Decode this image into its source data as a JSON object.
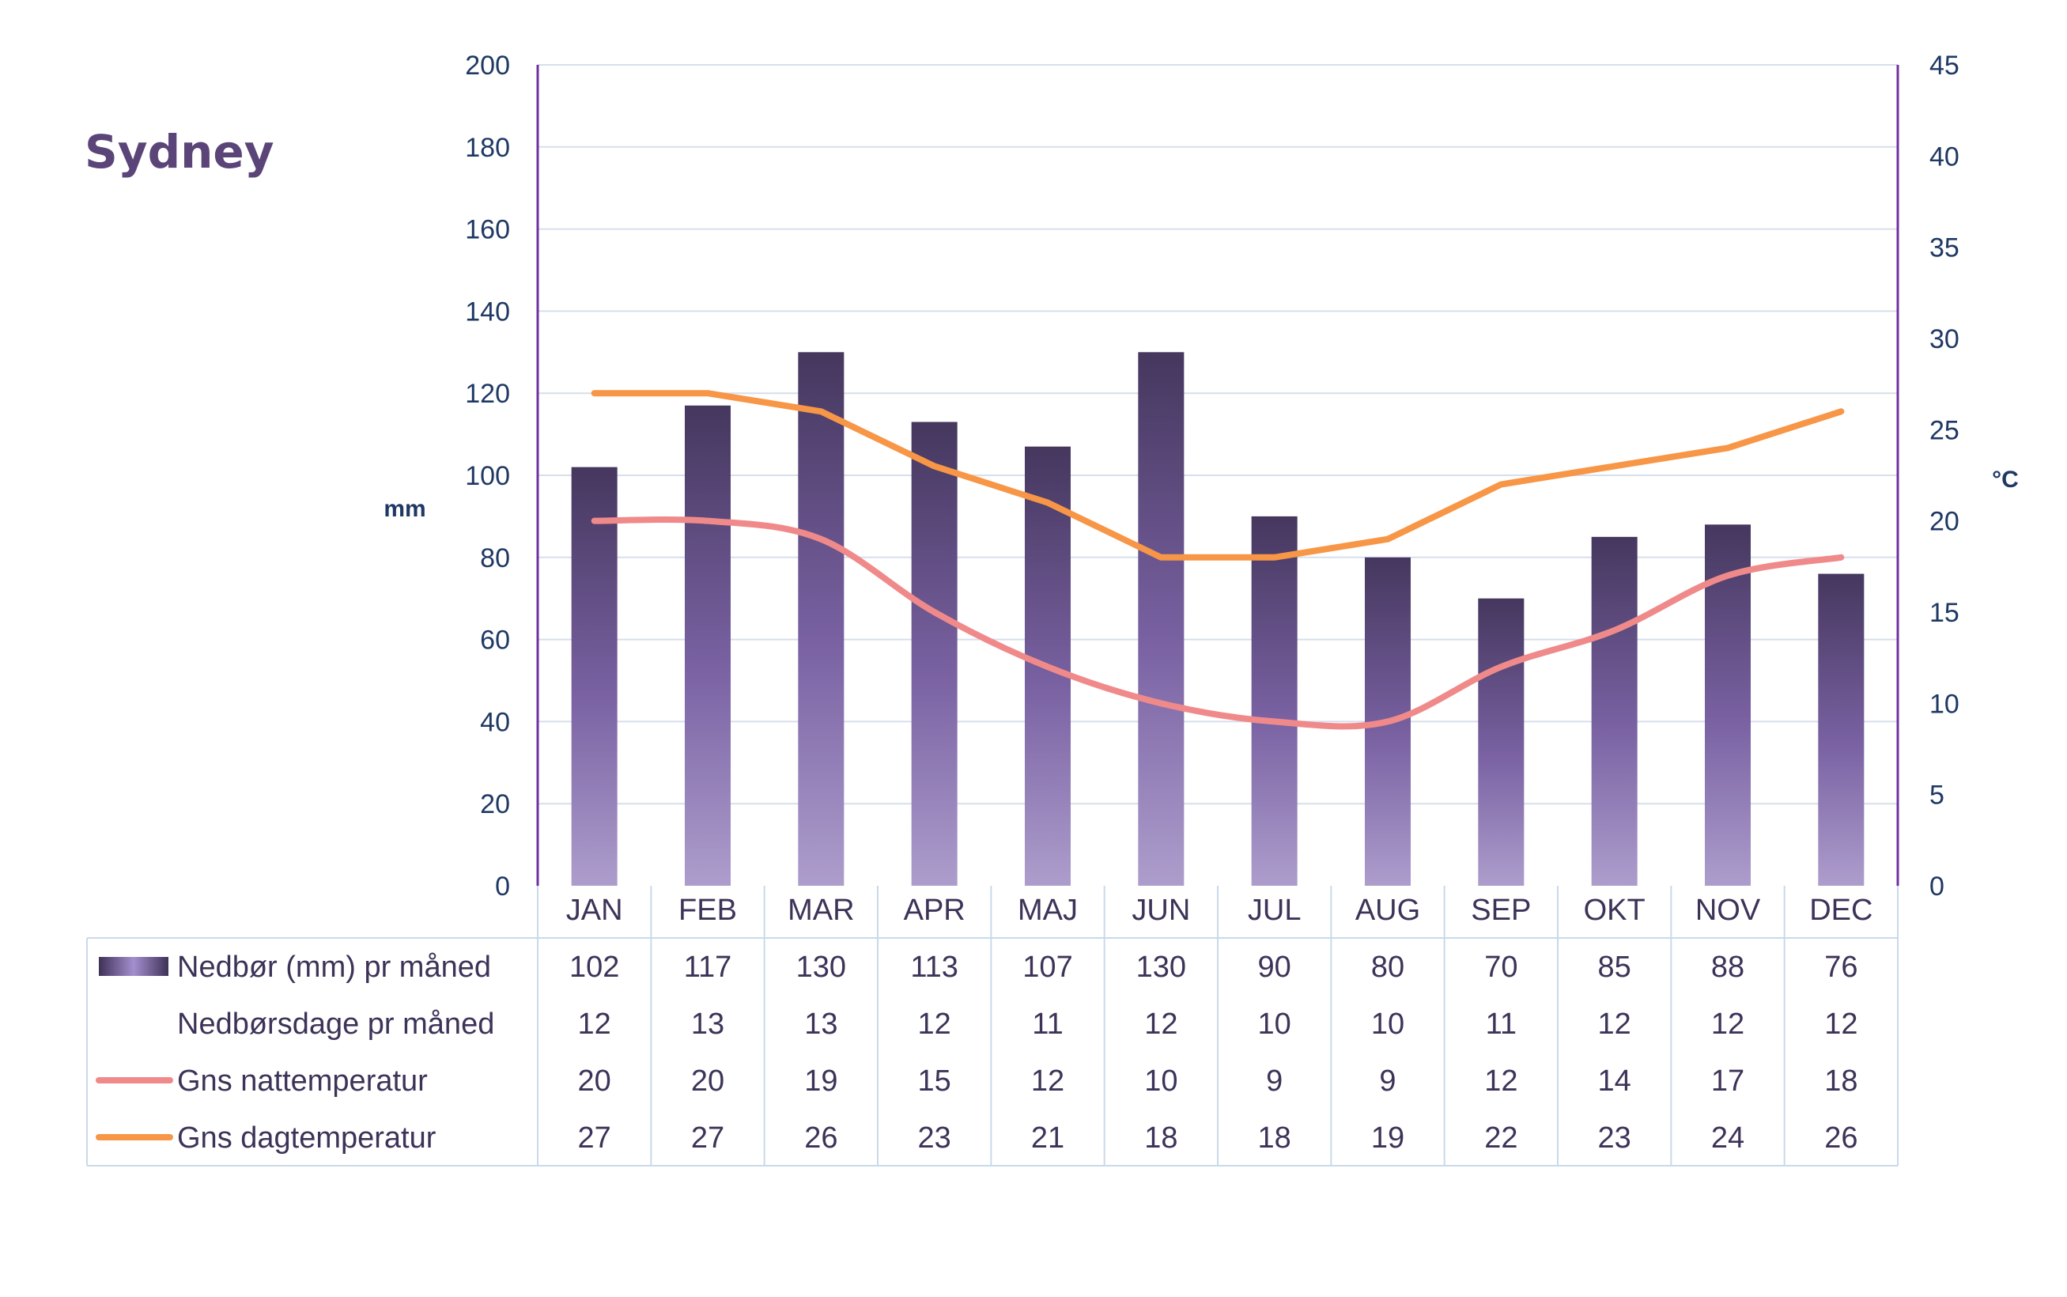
{
  "title": "Sydney",
  "chart_data": {
    "type": "bar",
    "title": "Sydney",
    "categories": [
      "JAN",
      "FEB",
      "MAR",
      "APR",
      "MAJ",
      "JUN",
      "JUL",
      "AUG",
      "SEP",
      "OKT",
      "NOV",
      "DEC"
    ],
    "ylabel_left": "mm",
    "ylabel_right": "°C",
    "ylim_left": [
      0,
      200
    ],
    "ylim_right": [
      0,
      45
    ],
    "yticks_left": [
      0,
      20,
      40,
      60,
      80,
      100,
      120,
      140,
      160,
      180,
      200
    ],
    "yticks_right": [
      0,
      5,
      10,
      15,
      20,
      25,
      30,
      35,
      40,
      45
    ],
    "grid": true,
    "series": [
      {
        "name": "Nedbør (mm) pr måned",
        "type": "bar",
        "axis": "left",
        "color": "#5b4a80",
        "values": [
          102,
          117,
          130,
          113,
          107,
          130,
          90,
          80,
          70,
          85,
          88,
          76
        ]
      },
      {
        "name": "Nedbørsdage pr måned",
        "type": "table",
        "axis": "none",
        "values": [
          12,
          13,
          13,
          12,
          11,
          12,
          10,
          10,
          11,
          12,
          12,
          12
        ]
      },
      {
        "name": "Gns nattemperatur",
        "type": "line",
        "axis": "right",
        "color": "#f08a8a",
        "values": [
          20,
          20,
          19,
          15,
          12,
          10,
          9,
          9,
          12,
          14,
          17,
          18
        ]
      },
      {
        "name": "Gns dagtemperatur",
        "type": "line",
        "axis": "right",
        "color": "#f79646",
        "values": [
          27,
          27,
          26,
          23,
          21,
          18,
          18,
          19,
          22,
          23,
          24,
          26
        ]
      }
    ]
  }
}
